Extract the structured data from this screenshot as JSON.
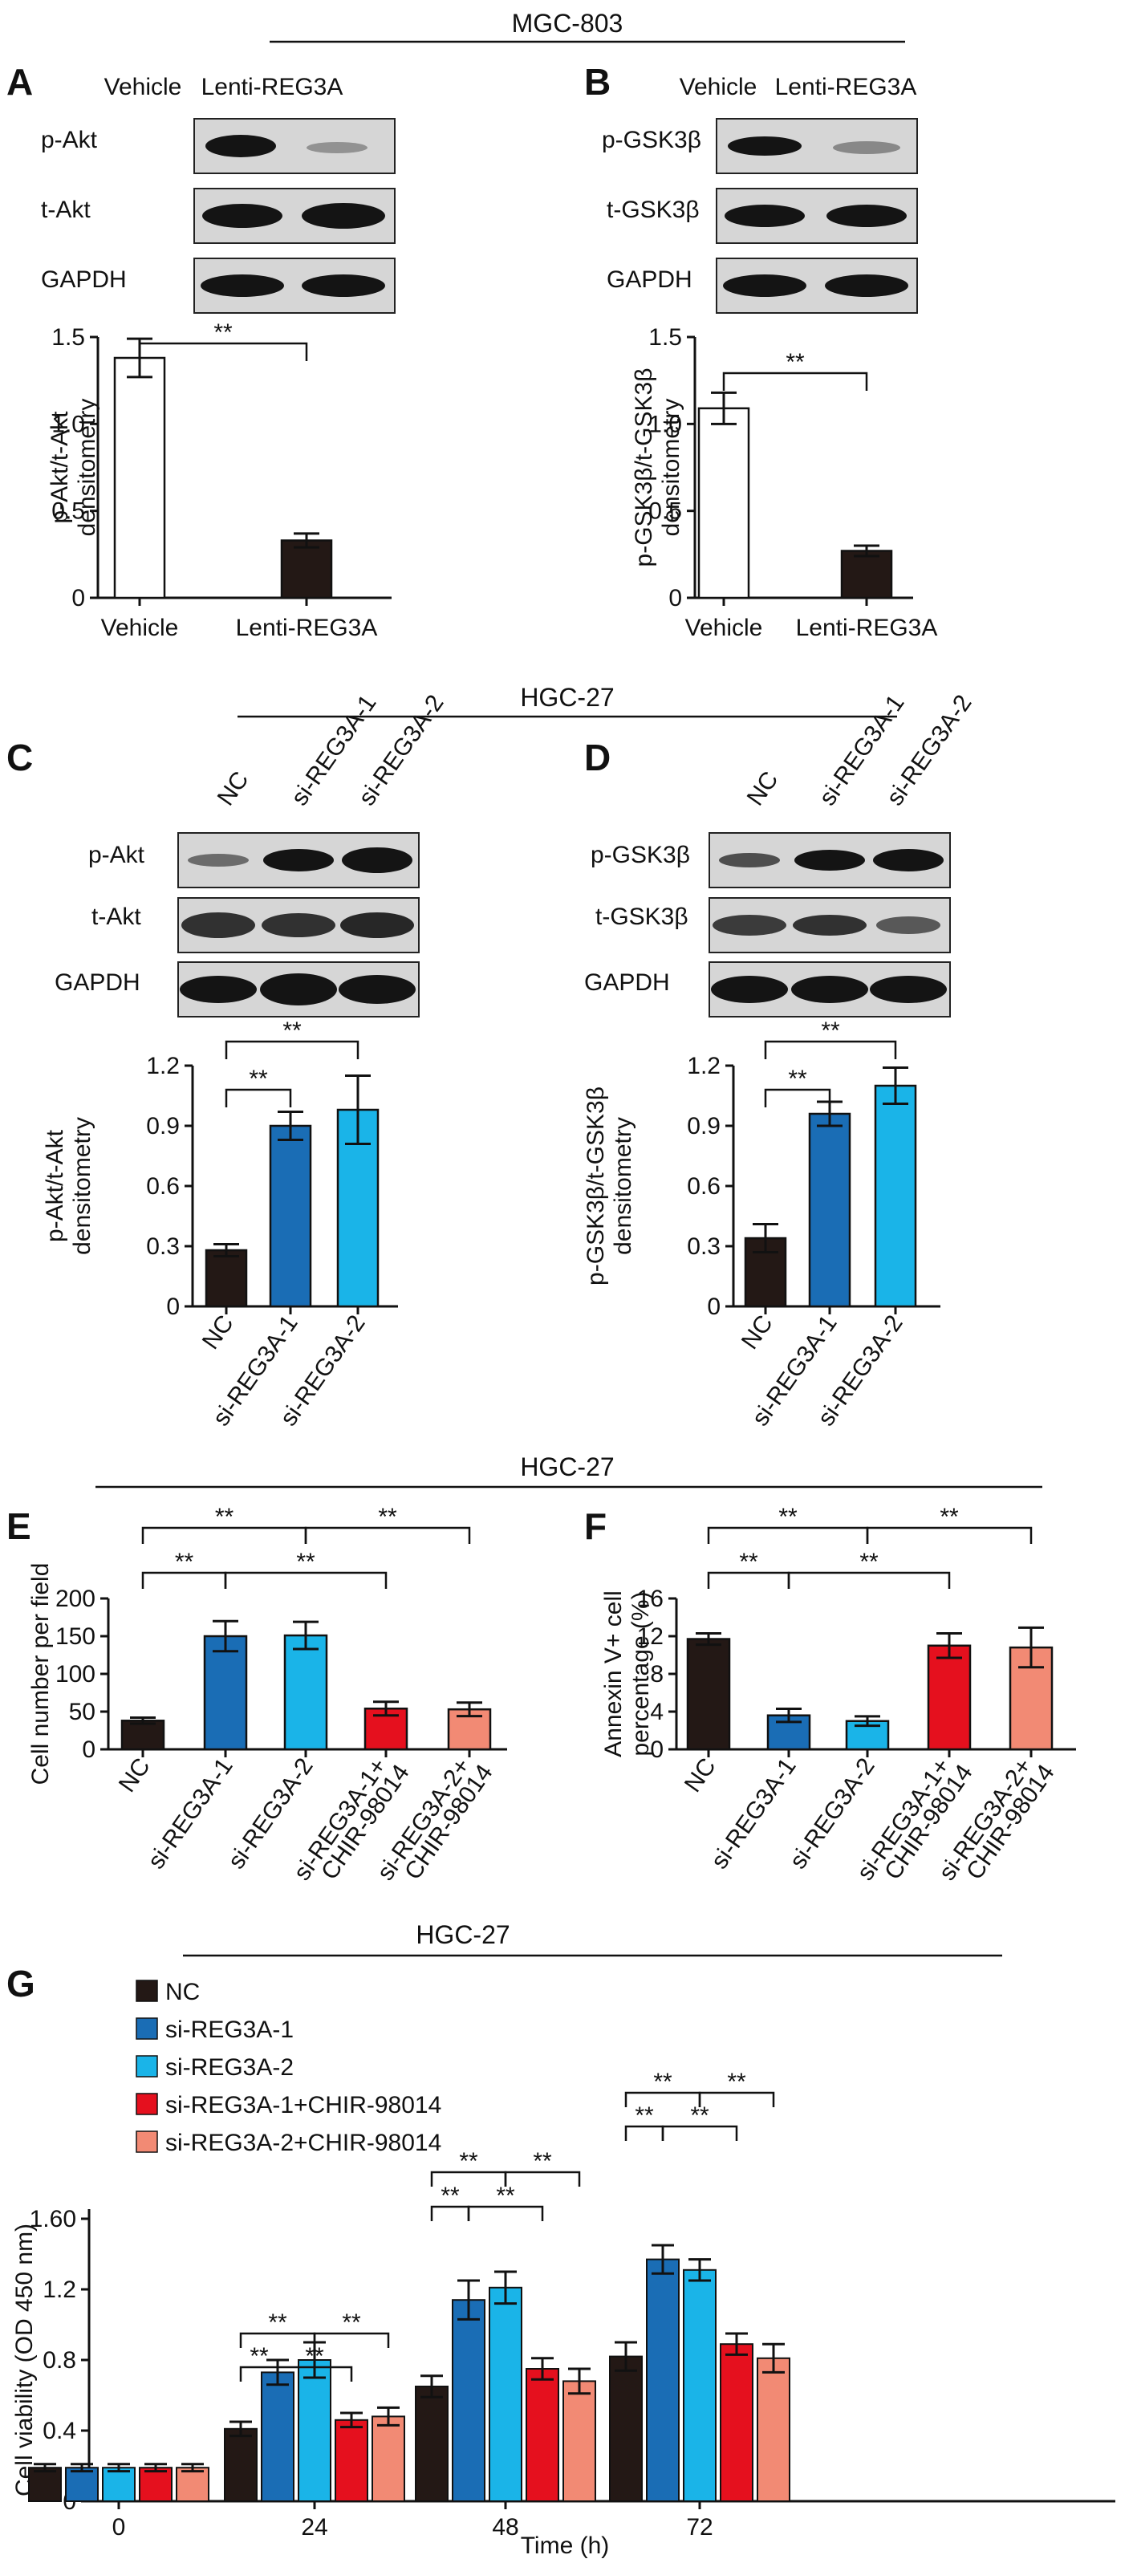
{
  "headers": {
    "mgc": "MGC-803",
    "hgc1": "HGC-27",
    "hgc2": "HGC-27",
    "hgc3": "HGC-27"
  },
  "colors": {
    "NC": "#231815",
    "si1": "#1a6db5",
    "si2": "#1ab4e8",
    "si1chir": "#e5101e",
    "si2chir": "#f28a74",
    "vehicle": "#ffffff",
    "lenti": "#231815"
  },
  "panels": {
    "A": {
      "letter": "A",
      "lanes": [
        "Vehicle",
        "Lenti-REG3A"
      ],
      "rows": [
        "p-Akt",
        "t-Akt",
        "GAPDH"
      ]
    },
    "B": {
      "letter": "B",
      "lanes": [
        "Vehicle",
        "Lenti-REG3A"
      ],
      "rows": [
        "p-GSK3β",
        "t-GSK3β",
        "GAPDH"
      ]
    },
    "C": {
      "letter": "C",
      "lanes": [
        "NC",
        "si-REG3A-1",
        "si-REG3A-2"
      ],
      "rows": [
        "p-Akt",
        "t-Akt",
        "GAPDH"
      ]
    },
    "D": {
      "letter": "D",
      "lanes": [
        "NC",
        "si-REG3A-1",
        "si-REG3A-2"
      ],
      "rows": [
        "p-GSK3β",
        "t-GSK3β",
        "GAPDH"
      ]
    },
    "E": {
      "letter": "E"
    },
    "F": {
      "letter": "F"
    },
    "G": {
      "letter": "G"
    }
  },
  "chart_data": [
    {
      "id": "A",
      "type": "bar",
      "categories": [
        "Vehicle",
        "Lenti-REG3A"
      ],
      "values": [
        1.38,
        0.33
      ],
      "errors": [
        0.11,
        0.04
      ],
      "ylabel": "p-Akt/t-Akt densitometry",
      "ylim": [
        0,
        1.5
      ],
      "yticks": [
        "0",
        "0.5",
        "1.0",
        "1.5"
      ],
      "significance": [
        {
          "pair": [
            0,
            1
          ],
          "label": "**"
        }
      ]
    },
    {
      "id": "B",
      "type": "bar",
      "categories": [
        "Vehicle",
        "Lenti-REG3A"
      ],
      "values": [
        1.09,
        0.27
      ],
      "errors": [
        0.09,
        0.03
      ],
      "ylabel": "p-GSK3β/t-GSK3β densitometry",
      "ylim": [
        0,
        1.5
      ],
      "yticks": [
        "0",
        "0.5",
        "1.0",
        "1.5"
      ],
      "significance": [
        {
          "pair": [
            0,
            1
          ],
          "label": "**"
        }
      ]
    },
    {
      "id": "C",
      "type": "bar",
      "categories": [
        "NC",
        "si-REG3A-1",
        "si-REG3A-2"
      ],
      "values": [
        0.28,
        0.9,
        0.98
      ],
      "errors": [
        0.03,
        0.07,
        0.17
      ],
      "ylabel": "p-Akt/t-Akt densitometry",
      "ylim": [
        0,
        1.2
      ],
      "yticks": [
        "0",
        "0.3",
        "0.6",
        "0.9",
        "1.2"
      ],
      "significance": [
        {
          "pair": [
            0,
            1
          ],
          "label": "**"
        },
        {
          "pair": [
            0,
            2
          ],
          "label": "**"
        }
      ]
    },
    {
      "id": "D",
      "type": "bar",
      "categories": [
        "NC",
        "si-REG3A-1",
        "si-REG3A-2"
      ],
      "values": [
        0.34,
        0.96,
        1.1
      ],
      "errors": [
        0.07,
        0.06,
        0.09
      ],
      "ylabel": "p-GSK3β/t-GSK3β densitometry",
      "ylim": [
        0,
        1.2
      ],
      "yticks": [
        "0",
        "0.3",
        "0.6",
        "0.9",
        "1.2"
      ],
      "significance": [
        {
          "pair": [
            0,
            1
          ],
          "label": "**"
        },
        {
          "pair": [
            0,
            2
          ],
          "label": "**"
        }
      ]
    },
    {
      "id": "E",
      "type": "bar",
      "categories": [
        "NC",
        "si-REG3A-1",
        "si-REG3A-2",
        "si-REG3A-1+ CHIR-98014",
        "si-REG3A-2+ CHIR-98014"
      ],
      "values": [
        38,
        150,
        151,
        54,
        53
      ],
      "errors": [
        4,
        20,
        18,
        9,
        9
      ],
      "ylabel": "Cell number per field",
      "ylim": [
        0,
        200
      ],
      "yticks": [
        "0",
        "50",
        "100",
        "150",
        "200"
      ],
      "significance": [
        {
          "pair": [
            0,
            1
          ],
          "label": "**"
        },
        {
          "pair": [
            0,
            2
          ],
          "label": "**"
        },
        {
          "pair": [
            1,
            3
          ],
          "label": "**"
        },
        {
          "pair": [
            2,
            4
          ],
          "label": "**"
        }
      ]
    },
    {
      "id": "F",
      "type": "bar",
      "categories": [
        "NC",
        "si-REG3A-1",
        "si-REG3A-2",
        "si-REG3A-1+ CHIR-98014",
        "si-REG3A-2+ CHIR-98014"
      ],
      "values": [
        11.7,
        3.6,
        3.0,
        11.0,
        10.8
      ],
      "errors": [
        0.6,
        0.7,
        0.5,
        1.3,
        2.1
      ],
      "ylabel": "Annexin V+ cell percentage (%)",
      "ylim": [
        0,
        16
      ],
      "yticks": [
        "0",
        "4",
        "8",
        "12",
        "16"
      ],
      "significance": [
        {
          "pair": [
            0,
            1
          ],
          "label": "**"
        },
        {
          "pair": [
            0,
            2
          ],
          "label": "**"
        },
        {
          "pair": [
            1,
            3
          ],
          "label": "**"
        },
        {
          "pair": [
            2,
            4
          ],
          "label": "**"
        }
      ]
    },
    {
      "id": "G",
      "type": "bar",
      "categories": [
        "0",
        "24",
        "48",
        "72"
      ],
      "xlabel": "Time (h)",
      "ylabel": "Cell viability (OD 450 nm)",
      "ylim": [
        0,
        1.6
      ],
      "yticks": [
        "0",
        "0.4",
        "0.8",
        "1.2",
        "1.60"
      ],
      "series": [
        {
          "name": "NC",
          "values": [
            0.19,
            0.41,
            0.65,
            0.82
          ],
          "errors": [
            0.02,
            0.04,
            0.06,
            0.08
          ]
        },
        {
          "name": "si-REG3A-1",
          "values": [
            0.19,
            0.73,
            1.14,
            1.37
          ],
          "errors": [
            0.02,
            0.07,
            0.11,
            0.08
          ]
        },
        {
          "name": "si-REG3A-2",
          "values": [
            0.19,
            0.8,
            1.21,
            1.31
          ],
          "errors": [
            0.02,
            0.1,
            0.09,
            0.06
          ]
        },
        {
          "name": "si-REG3A-1+CHIR-98014",
          "values": [
            0.19,
            0.46,
            0.75,
            0.89
          ],
          "errors": [
            0.02,
            0.04,
            0.06,
            0.06
          ]
        },
        {
          "name": "si-REG3A-2+CHIR-98014",
          "values": [
            0.19,
            0.48,
            0.68,
            0.81
          ],
          "errors": [
            0.02,
            0.05,
            0.07,
            0.08
          ]
        }
      ],
      "significance_label": "**"
    }
  ]
}
